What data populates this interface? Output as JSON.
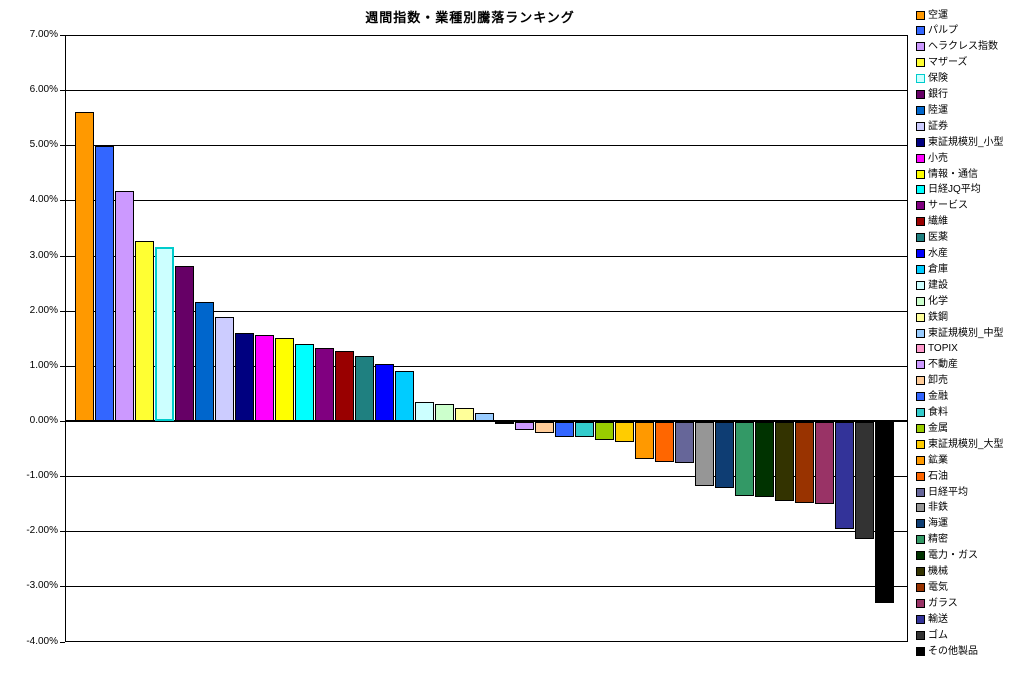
{
  "title": "週間指数・業種別騰落ランキング",
  "chart_data": {
    "type": "bar",
    "title": "週間指数・業種別騰落ランキング",
    "xlabel": "",
    "ylabel": "",
    "ylim": [
      -4,
      7
    ],
    "ytick_step": 1,
    "grid": true,
    "legend_position": "right",
    "value_axis_ticks": [
      {
        "value": 7,
        "label": "7.00%"
      },
      {
        "value": 6,
        "label": "6.00%"
      },
      {
        "value": 5,
        "label": "5.00%"
      },
      {
        "value": 4,
        "label": "4.00%"
      },
      {
        "value": 3,
        "label": "3.00%"
      },
      {
        "value": 2,
        "label": "2.00%"
      },
      {
        "value": 1,
        "label": "1.00%"
      },
      {
        "value": 0,
        "label": "0.00%"
      },
      {
        "value": -1,
        "label": "-1.00%"
      },
      {
        "value": -2,
        "label": "-2.00%"
      },
      {
        "value": -3,
        "label": "-3.00%"
      },
      {
        "value": -4,
        "label": "-4.00%"
      }
    ],
    "series": [
      {
        "name": "空運",
        "value": 5.6,
        "color": "#FF9900"
      },
      {
        "name": "パルプ",
        "value": 4.99,
        "color": "#3366FF"
      },
      {
        "name": "ヘラクレス指数",
        "value": 4.17,
        "color": "#CC99FF"
      },
      {
        "name": "マザーズ",
        "value": 3.27,
        "color": "#FFFF33"
      },
      {
        "name": "保険",
        "value": 3.15,
        "color": "#CCFFFF",
        "border": "#00CCCC"
      },
      {
        "name": "銀行",
        "value": 2.81,
        "color": "#660066"
      },
      {
        "name": "陸運",
        "value": 2.15,
        "color": "#0066CC"
      },
      {
        "name": "証券",
        "value": 1.89,
        "color": "#CCCCFF"
      },
      {
        "name": "東証規模別_小型",
        "value": 1.59,
        "color": "#000080"
      },
      {
        "name": "小売",
        "value": 1.56,
        "color": "#FF00FF"
      },
      {
        "name": "情報・通信",
        "value": 1.5,
        "color": "#FFFF00"
      },
      {
        "name": "日経JQ平均",
        "value": 1.4,
        "color": "#00FFFF"
      },
      {
        "name": "サービス",
        "value": 1.33,
        "color": "#800080"
      },
      {
        "name": "繊維",
        "value": 1.27,
        "color": "#990000"
      },
      {
        "name": "医薬",
        "value": 1.17,
        "color": "#1F8080"
      },
      {
        "name": "水産",
        "value": 1.03,
        "color": "#0000FF"
      },
      {
        "name": "倉庫",
        "value": 0.91,
        "color": "#00CCFF"
      },
      {
        "name": "建設",
        "value": 0.35,
        "color": "#CCFFFF"
      },
      {
        "name": "化学",
        "value": 0.31,
        "color": "#CCFFCC"
      },
      {
        "name": "鉄鋼",
        "value": 0.24,
        "color": "#FFFF99"
      },
      {
        "name": "東証規模別_中型",
        "value": 0.14,
        "color": "#99CCFF"
      },
      {
        "name": "TOPIX",
        "value": -0.02,
        "color": "#FF99CC"
      },
      {
        "name": "不動産",
        "value": -0.15,
        "color": "#CC99FF"
      },
      {
        "name": "卸売",
        "value": -0.2,
        "color": "#FFCC99"
      },
      {
        "name": "金融",
        "value": -0.28,
        "color": "#3366FF"
      },
      {
        "name": "食料",
        "value": -0.28,
        "color": "#33CCCC"
      },
      {
        "name": "金属",
        "value": -0.33,
        "color": "#99CC00"
      },
      {
        "name": "東証規模別_大型",
        "value": -0.37,
        "color": "#FFCC00"
      },
      {
        "name": "鉱業",
        "value": -0.68,
        "color": "#FF9900"
      },
      {
        "name": "石油",
        "value": -0.73,
        "color": "#FF6600"
      },
      {
        "name": "日経平均",
        "value": -0.74,
        "color": "#666699"
      },
      {
        "name": "非鉄",
        "value": -1.16,
        "color": "#969696"
      },
      {
        "name": "海運",
        "value": -1.2,
        "color": "#0E3D73"
      },
      {
        "name": "精密",
        "value": -1.34,
        "color": "#339966"
      },
      {
        "name": "電力・ガス",
        "value": -1.36,
        "color": "#003300"
      },
      {
        "name": "機械",
        "value": -1.44,
        "color": "#333300"
      },
      {
        "name": "電気",
        "value": -1.46,
        "color": "#993300"
      },
      {
        "name": "ガラス",
        "value": -1.48,
        "color": "#993366"
      },
      {
        "name": "輸送",
        "value": -1.94,
        "color": "#333399"
      },
      {
        "name": "ゴム",
        "value": -2.12,
        "color": "#333333"
      },
      {
        "name": "その他製品",
        "value": -3.29,
        "color": "#000000"
      }
    ]
  },
  "layout_note_colors": {
    "gridline": "#000000",
    "plot_border": "#000000",
    "background": "#FFFFFF"
  }
}
